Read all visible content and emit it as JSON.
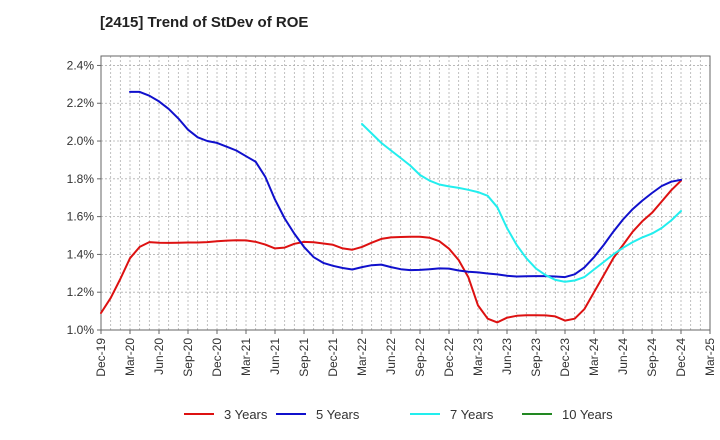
{
  "chart_data": {
    "type": "line",
    "title": "[2415]  Trend of StDev of ROE",
    "x_tick_labels": [
      "Dec-19",
      "Mar-20",
      "Jun-20",
      "Sep-20",
      "Dec-20",
      "Mar-21",
      "Jun-21",
      "Sep-21",
      "Dec-21",
      "Mar-22",
      "Jun-22",
      "Sep-22",
      "Dec-22",
      "Mar-23",
      "Jun-23",
      "Sep-23",
      "Dec-23",
      "Mar-24",
      "Jun-24",
      "Sep-24",
      "Dec-24",
      "Mar-25"
    ],
    "y_tick_labels": [
      "1.0%",
      "1.2%",
      "1.4%",
      "1.6%",
      "1.8%",
      "2.0%",
      "2.2%",
      "2.4%"
    ],
    "ylim": [
      1.0,
      2.45
    ],
    "y_unit": "%",
    "grid": true,
    "legend_position": "bottom",
    "series": [
      {
        "name": "3 Years",
        "color": "#dd1111",
        "points": [
          [
            "Dec-19",
            1.09
          ],
          [
            "Jan-20",
            1.17
          ],
          [
            "Feb-20",
            1.27
          ],
          [
            "Mar-20",
            1.38
          ],
          [
            "Apr-20",
            1.44
          ],
          [
            "May-20",
            1.465
          ],
          [
            "Jun-20",
            1.462
          ],
          [
            "Jul-20",
            1.461
          ],
          [
            "Aug-20",
            1.462
          ],
          [
            "Sep-20",
            1.463
          ],
          [
            "Oct-20",
            1.463
          ],
          [
            "Nov-20",
            1.465
          ],
          [
            "Dec-20",
            1.47
          ],
          [
            "Jan-21",
            1.473
          ],
          [
            "Feb-21",
            1.475
          ],
          [
            "Mar-21",
            1.474
          ],
          [
            "Apr-21",
            1.467
          ],
          [
            "May-21",
            1.452
          ],
          [
            "Jun-21",
            1.432
          ],
          [
            "Jul-21",
            1.436
          ],
          [
            "Aug-21",
            1.456
          ],
          [
            "Sep-21",
            1.466
          ],
          [
            "Oct-21",
            1.464
          ],
          [
            "Nov-21",
            1.458
          ],
          [
            "Dec-21",
            1.451
          ],
          [
            "Jan-22",
            1.432
          ],
          [
            "Feb-22",
            1.425
          ],
          [
            "Mar-22",
            1.44
          ],
          [
            "Apr-22",
            1.462
          ],
          [
            "May-22",
            1.482
          ],
          [
            "Jun-22",
            1.49
          ],
          [
            "Jul-22",
            1.492
          ],
          [
            "Aug-22",
            1.493
          ],
          [
            "Sep-22",
            1.493
          ],
          [
            "Oct-22",
            1.488
          ],
          [
            "Nov-22",
            1.47
          ],
          [
            "Dec-22",
            1.43
          ],
          [
            "Jan-23",
            1.37
          ],
          [
            "Feb-23",
            1.28
          ],
          [
            "Mar-23",
            1.13
          ],
          [
            "Apr-23",
            1.06
          ],
          [
            "May-23",
            1.04
          ],
          [
            "Jun-23",
            1.065
          ],
          [
            "Jul-23",
            1.075
          ],
          [
            "Aug-23",
            1.078
          ],
          [
            "Sep-23",
            1.078
          ],
          [
            "Oct-23",
            1.077
          ],
          [
            "Nov-23",
            1.072
          ],
          [
            "Dec-23",
            1.05
          ],
          [
            "Jan-24",
            1.06
          ],
          [
            "Feb-24",
            1.11
          ],
          [
            "Mar-24",
            1.2
          ],
          [
            "Apr-24",
            1.29
          ],
          [
            "May-24",
            1.38
          ],
          [
            "Jun-24",
            1.45
          ],
          [
            "Jul-24",
            1.52
          ],
          [
            "Aug-24",
            1.575
          ],
          [
            "Sep-24",
            1.62
          ],
          [
            "Oct-24",
            1.68
          ],
          [
            "Nov-24",
            1.74
          ],
          [
            "Dec-24",
            1.79
          ]
        ]
      },
      {
        "name": "5 Years",
        "color": "#1010cc",
        "points": [
          [
            "Mar-20",
            2.26
          ],
          [
            "Apr-20",
            2.26
          ],
          [
            "May-20",
            2.24
          ],
          [
            "Jun-20",
            2.21
          ],
          [
            "Jul-20",
            2.17
          ],
          [
            "Aug-20",
            2.12
          ],
          [
            "Sep-20",
            2.06
          ],
          [
            "Oct-20",
            2.02
          ],
          [
            "Nov-20",
            2.0
          ],
          [
            "Dec-20",
            1.99
          ],
          [
            "Jan-21",
            1.97
          ],
          [
            "Feb-21",
            1.95
          ],
          [
            "Mar-21",
            1.92
          ],
          [
            "Apr-21",
            1.89
          ],
          [
            "May-21",
            1.81
          ],
          [
            "Jun-21",
            1.69
          ],
          [
            "Jul-21",
            1.59
          ],
          [
            "Aug-21",
            1.51
          ],
          [
            "Sep-21",
            1.44
          ],
          [
            "Oct-21",
            1.385
          ],
          [
            "Nov-21",
            1.355
          ],
          [
            "Dec-21",
            1.34
          ],
          [
            "Jan-22",
            1.328
          ],
          [
            "Feb-22",
            1.32
          ],
          [
            "Mar-22",
            1.333
          ],
          [
            "Apr-22",
            1.343
          ],
          [
            "May-22",
            1.346
          ],
          [
            "Jun-22",
            1.333
          ],
          [
            "Jul-22",
            1.322
          ],
          [
            "Aug-22",
            1.317
          ],
          [
            "Sep-22",
            1.318
          ],
          [
            "Oct-22",
            1.322
          ],
          [
            "Nov-22",
            1.326
          ],
          [
            "Dec-22",
            1.325
          ],
          [
            "Jan-23",
            1.315
          ],
          [
            "Feb-23",
            1.308
          ],
          [
            "Mar-23",
            1.305
          ],
          [
            "Apr-23",
            1.299
          ],
          [
            "May-23",
            1.294
          ],
          [
            "Jun-23",
            1.287
          ],
          [
            "Jul-23",
            1.283
          ],
          [
            "Aug-23",
            1.284
          ],
          [
            "Sep-23",
            1.285
          ],
          [
            "Oct-23",
            1.285
          ],
          [
            "Nov-23",
            1.283
          ],
          [
            "Dec-23",
            1.28
          ],
          [
            "Jan-24",
            1.295
          ],
          [
            "Feb-24",
            1.33
          ],
          [
            "Mar-24",
            1.385
          ],
          [
            "Apr-24",
            1.45
          ],
          [
            "May-24",
            1.52
          ],
          [
            "Jun-24",
            1.585
          ],
          [
            "Jul-24",
            1.64
          ],
          [
            "Aug-24",
            1.685
          ],
          [
            "Sep-24",
            1.725
          ],
          [
            "Oct-24",
            1.762
          ],
          [
            "Nov-24",
            1.785
          ],
          [
            "Dec-24",
            1.795
          ]
        ]
      },
      {
        "name": "7 Years",
        "color": "#22eeee",
        "points": [
          [
            "Mar-22",
            2.09
          ],
          [
            "Apr-22",
            2.04
          ],
          [
            "May-22",
            1.99
          ],
          [
            "Jun-22",
            1.95
          ],
          [
            "Jul-22",
            1.91
          ],
          [
            "Aug-22",
            1.87
          ],
          [
            "Sep-22",
            1.82
          ],
          [
            "Oct-22",
            1.79
          ],
          [
            "Nov-22",
            1.77
          ],
          [
            "Dec-22",
            1.76
          ],
          [
            "Jan-23",
            1.752
          ],
          [
            "Feb-23",
            1.742
          ],
          [
            "Mar-23",
            1.73
          ],
          [
            "Apr-23",
            1.71
          ],
          [
            "May-23",
            1.65
          ],
          [
            "Jun-23",
            1.54
          ],
          [
            "Jul-23",
            1.45
          ],
          [
            "Aug-23",
            1.38
          ],
          [
            "Sep-23",
            1.325
          ],
          [
            "Oct-23",
            1.29
          ],
          [
            "Nov-23",
            1.265
          ],
          [
            "Dec-23",
            1.255
          ],
          [
            "Jan-24",
            1.262
          ],
          [
            "Feb-24",
            1.28
          ],
          [
            "Mar-24",
            1.32
          ],
          [
            "Apr-24",
            1.36
          ],
          [
            "May-24",
            1.4
          ],
          [
            "Jun-24",
            1.435
          ],
          [
            "Jul-24",
            1.465
          ],
          [
            "Aug-24",
            1.49
          ],
          [
            "Sep-24",
            1.51
          ],
          [
            "Oct-24",
            1.54
          ],
          [
            "Nov-24",
            1.58
          ],
          [
            "Dec-24",
            1.63
          ]
        ]
      },
      {
        "name": "10 Years",
        "color": "#228822",
        "points": []
      }
    ]
  }
}
